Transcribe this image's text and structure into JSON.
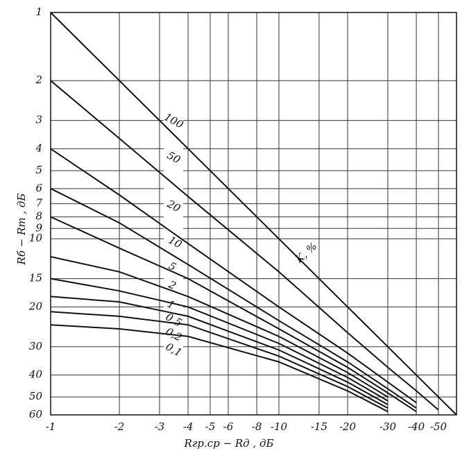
{
  "chart_data": {
    "type": "line",
    "x_label": "Rгр.ср − Rд , дБ",
    "y_label": "Rб − Rm , дБ",
    "annotation": "K, %",
    "x": [
      -1,
      -2,
      -4,
      -10,
      -20,
      -30,
      -40,
      -50,
      -60
    ],
    "series": [
      {
        "name": "100",
        "color": "#111111",
        "values": [
          1,
          2,
          4,
          10,
          20,
          30,
          40,
          50,
          60
        ]
      },
      {
        "name": "50",
        "color": "#111111",
        "values": [
          2,
          3.6,
          6.5,
          14,
          26,
          37,
          47,
          57,
          null
        ]
      },
      {
        "name": "20",
        "color": "#111111",
        "values": [
          4,
          6.4,
          10.5,
          20,
          32,
          43,
          53,
          null,
          null
        ]
      },
      {
        "name": "10",
        "color": "#111111",
        "values": [
          6,
          8.5,
          13,
          23,
          35,
          46,
          56,
          null,
          null
        ]
      },
      {
        "name": "5",
        "color": "#111111",
        "values": [
          8,
          11,
          15,
          25,
          37,
          48,
          58,
          null,
          null
        ]
      },
      {
        "name": "2",
        "color": "#111111",
        "values": [
          12,
          14,
          18,
          27,
          39,
          50,
          null,
          null,
          null
        ]
      },
      {
        "name": "1",
        "color": "#111111",
        "values": [
          15,
          17,
          20,
          29,
          41,
          52,
          null,
          null,
          null
        ]
      },
      {
        "name": "0,5",
        "color": "#111111",
        "values": [
          18,
          19,
          22,
          31,
          43,
          54,
          null,
          null,
          null
        ]
      },
      {
        "name": "0,2",
        "color": "#111111",
        "values": [
          21,
          22,
          24,
          33,
          45,
          56,
          null,
          null,
          null
        ]
      },
      {
        "name": "0,1",
        "color": "#111111",
        "values": [
          24,
          25,
          27,
          35,
          47,
          58,
          null,
          null,
          null
        ]
      }
    ],
    "xscale": "log",
    "yscale": "log",
    "y_inverted": true,
    "grid": true,
    "xlim": [
      -1,
      -60
    ],
    "ylim": [
      1,
      60
    ],
    "xticks": [
      -1,
      -2,
      -3,
      -4,
      -5,
      -6,
      -8,
      -10,
      -15,
      -20,
      -30,
      -40,
      -50
    ],
    "yticks": [
      1,
      2,
      3,
      4,
      5,
      6,
      7,
      8,
      9,
      10,
      15,
      20,
      30,
      40,
      50,
      60
    ]
  }
}
